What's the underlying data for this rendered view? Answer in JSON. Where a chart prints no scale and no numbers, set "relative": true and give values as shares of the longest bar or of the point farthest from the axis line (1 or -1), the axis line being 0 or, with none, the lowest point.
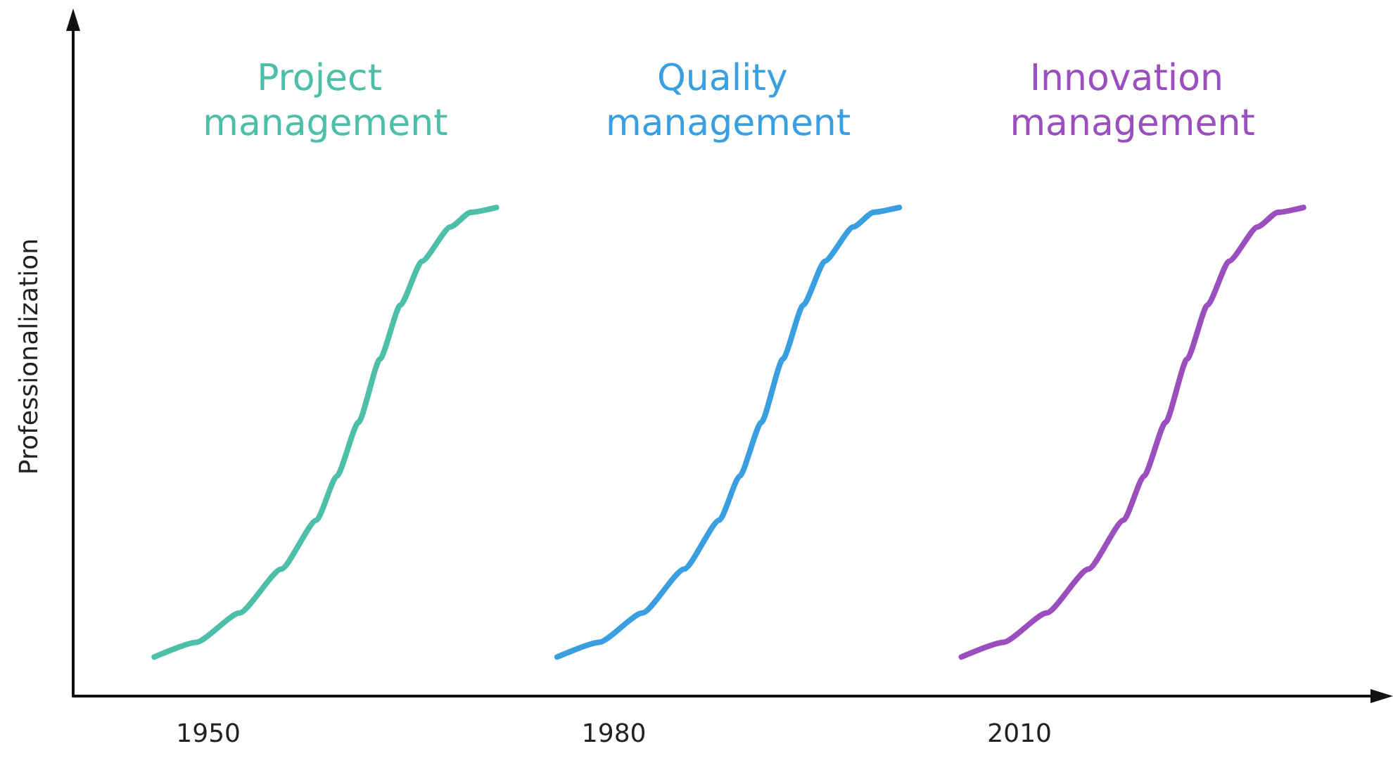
{
  "chart_data": {
    "type": "line",
    "ylabel": "Professionalization",
    "relative": true,
    "xlim": [
      1940,
      2037
    ],
    "xticks": [
      1950,
      1980,
      2010
    ],
    "grid": false,
    "legend": false,
    "marker": "none",
    "line_style": "solid",
    "series": [
      {
        "name": "Project management",
        "color": "#4dbfa8",
        "x": [
          1946,
          1949.1,
          1952.3,
          1955.4,
          1958,
          1959.5,
          1961.1,
          1962.7,
          1964.2,
          1965.8,
          1967.9,
          1969.4,
          1971.3
        ],
        "values": [
          0.08,
          0.11,
          0.17,
          0.26,
          0.36,
          0.45,
          0.56,
          0.69,
          0.8,
          0.89,
          0.96,
          0.99,
          1
        ]
      },
      {
        "name": "Quality management",
        "color": "#3a9fe0",
        "x": [
          1975.8,
          1978.9,
          1982.1,
          1985.2,
          1987.8,
          1989.3,
          1990.9,
          1992.5,
          1994,
          1995.6,
          1997.7,
          1999.2,
          2001.1
        ],
        "values": [
          0.08,
          0.11,
          0.17,
          0.26,
          0.36,
          0.45,
          0.56,
          0.69,
          0.8,
          0.89,
          0.96,
          0.99,
          1
        ]
      },
      {
        "name": "Innovation management",
        "color": "#9b4fbf",
        "x": [
          2005.7,
          2008.8,
          2012,
          2015.1,
          2017.7,
          2019.2,
          2020.8,
          2022.4,
          2023.9,
          2025.5,
          2027.6,
          2029.1,
          2031
        ],
        "values": [
          0.08,
          0.11,
          0.17,
          0.26,
          0.36,
          0.45,
          0.56,
          0.69,
          0.8,
          0.89,
          0.96,
          0.99,
          1
        ]
      }
    ]
  }
}
